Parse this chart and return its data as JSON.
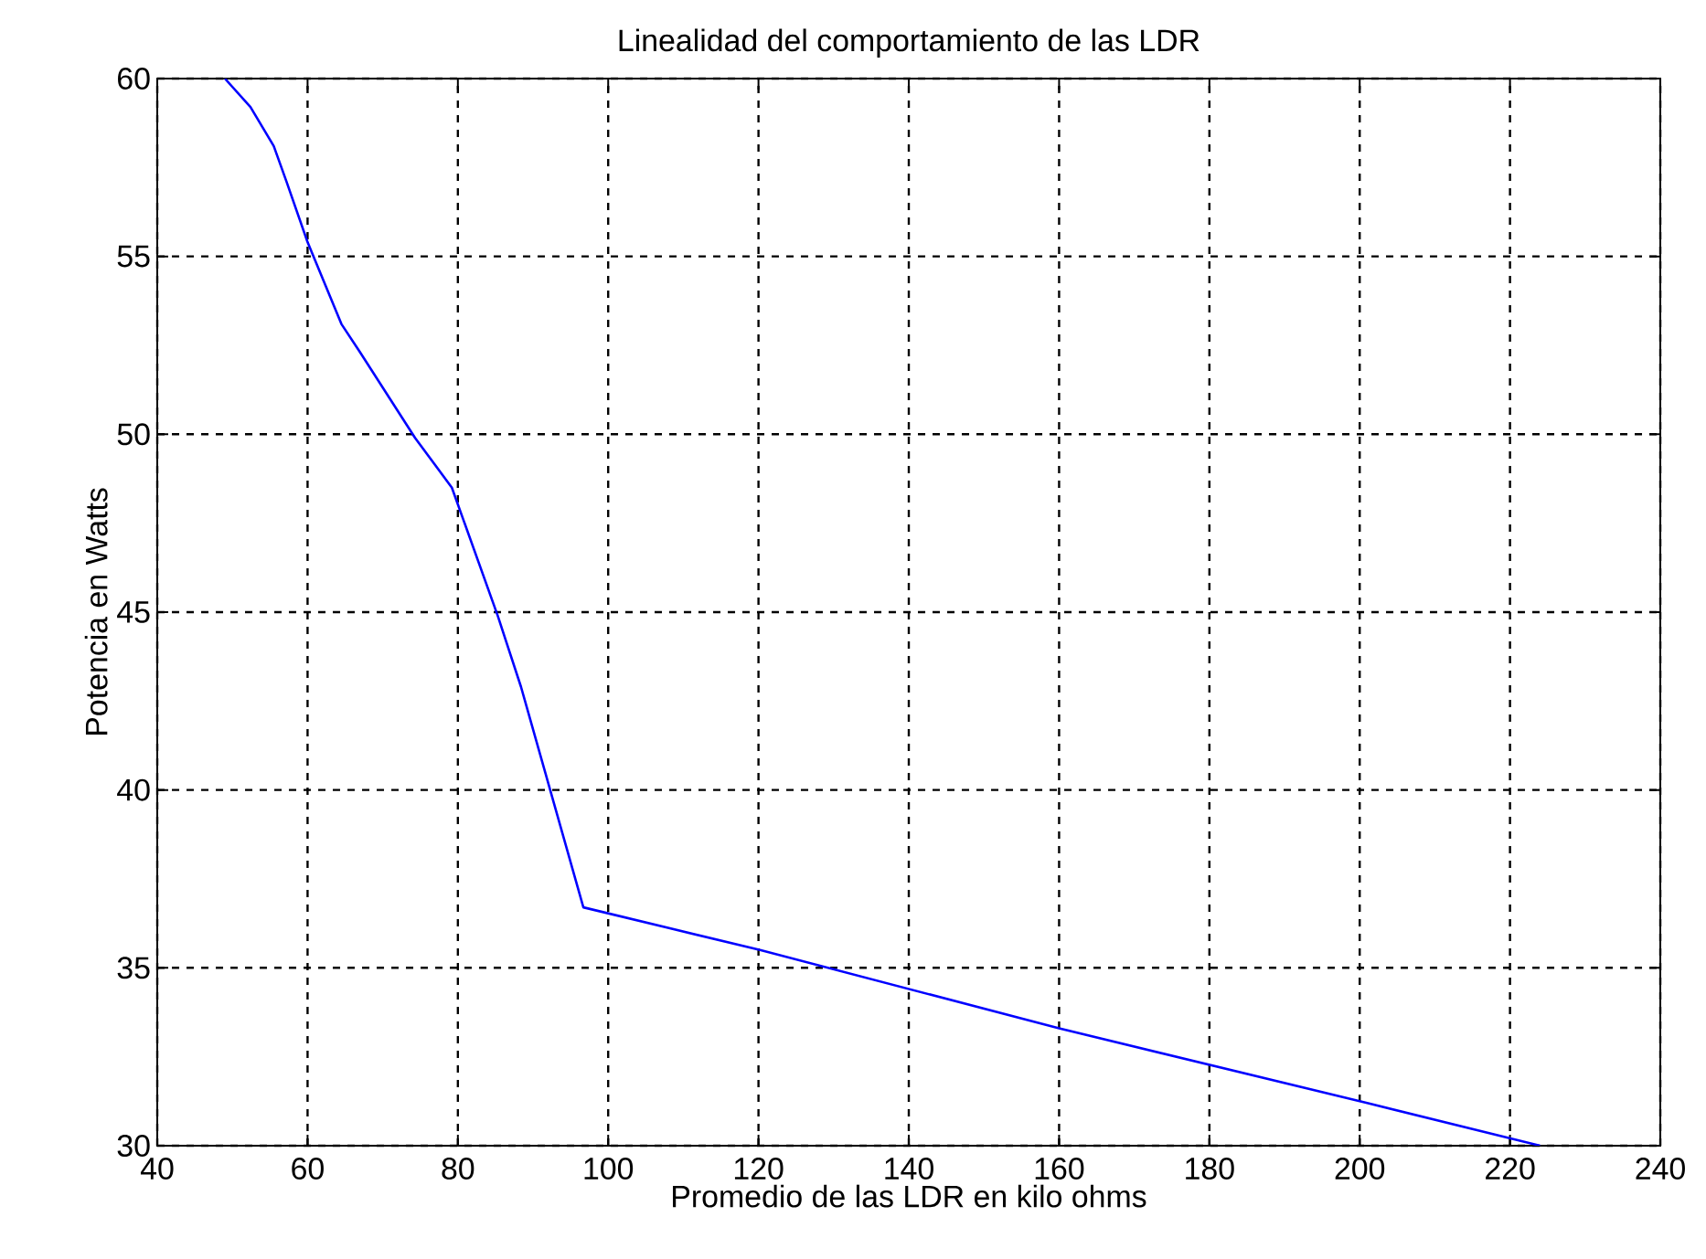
{
  "chart_data": {
    "type": "line",
    "title": "Linealidad del comportamiento de las LDR",
    "xlabel": "Promedio de las LDR en kilo ohms",
    "ylabel": "Potencia en Watts",
    "x": [
      49,
      52.4,
      55.5,
      57.2,
      60,
      64.5,
      67,
      74.3,
      79.2,
      85.3,
      88.4,
      96.7,
      120.2,
      160,
      201,
      224
    ],
    "values": [
      60,
      59.2,
      58.1,
      57.1,
      55.4,
      53.1,
      52.3,
      49.9,
      48.5,
      44.9,
      42.9,
      36.7,
      35.5,
      33.3,
      31.2,
      30
    ],
    "color": "#0000ff",
    "xlim": [
      40,
      240
    ],
    "ylim": [
      30,
      60
    ],
    "xticks": [
      40,
      60,
      80,
      100,
      120,
      140,
      160,
      180,
      200,
      220,
      240
    ],
    "yticks": [
      30,
      35,
      40,
      45,
      50,
      55,
      60
    ],
    "grid": true,
    "line_style": "solid",
    "marker": "none"
  }
}
